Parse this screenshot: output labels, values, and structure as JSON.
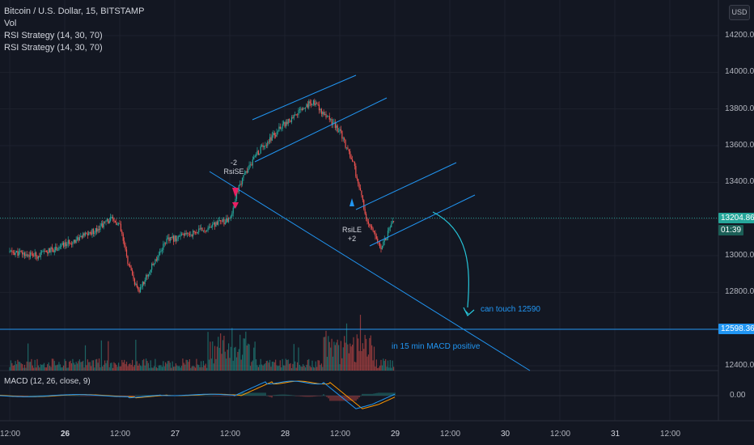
{
  "legend": {
    "symbol": "Bitcoin / U.S. Dollar, 15, BITSTAMP",
    "lines": [
      "Vol",
      "RSI Strategy (14, 30, 70)",
      "RSI Strategy (14, 30, 70)"
    ]
  },
  "currency_button": "USD",
  "macd_label": "MACD (12, 26, close, 9)",
  "price_badge": {
    "value": "13204.86",
    "timer": "01:39"
  },
  "line_badge": "12598.36",
  "annotations": {
    "short": {
      "count": "-2",
      "label": "RsiSE"
    },
    "long": {
      "label": "RsiLE",
      "count": "+2"
    },
    "note_target": "can touch 12590",
    "note_macd": "in 15 min MACD positive"
  },
  "colors": {
    "background": "#131722",
    "up": "#26a69a",
    "down": "#ef5350",
    "drawing": "#2196f3",
    "price_line": "#26a69a",
    "macd": "#2196f3",
    "signal": "#ff9800"
  },
  "chart_data": {
    "type": "candlestick",
    "title": "Bitcoin / U.S. Dollar, 15, BITSTAMP",
    "y_ticks": [
      "14200.00",
      "14000.00",
      "13800.00",
      "13600.00",
      "13400.00",
      "13200.00",
      "13000.00",
      "12800.00",
      "12600.00",
      "12400.00"
    ],
    "x_ticks": [
      "12:00",
      "26",
      "12:00",
      "27",
      "12:00",
      "28",
      "12:00",
      "29",
      "12:00",
      "30",
      "12:00",
      "31",
      "12:00"
    ],
    "macd_ticks": [
      "0.00"
    ],
    "ylim": [
      12375,
      14300
    ],
    "price_path": [
      {
        "x": "25 12:00",
        "y": 13020
      },
      {
        "x": "25 18:00",
        "y": 13000
      },
      {
        "x": "26 00:00",
        "y": 13060
      },
      {
        "x": "26 06:00",
        "y": 13130
      },
      {
        "x": "26 10:00",
        "y": 13200
      },
      {
        "x": "26 12:00",
        "y": 13160
      },
      {
        "x": "26 14:00",
        "y": 12940
      },
      {
        "x": "26 16:00",
        "y": 12800
      },
      {
        "x": "26 22:00",
        "y": 13080
      },
      {
        "x": "27 06:00",
        "y": 13140
      },
      {
        "x": "27 12:00",
        "y": 13200
      },
      {
        "x": "27 14:00",
        "y": 13380
      },
      {
        "x": "27 18:00",
        "y": 13560
      },
      {
        "x": "28 00:00",
        "y": 13720
      },
      {
        "x": "28 06:00",
        "y": 13840
      },
      {
        "x": "28 12:00",
        "y": 13680
      },
      {
        "x": "28 15:00",
        "y": 13500
      },
      {
        "x": "28 18:00",
        "y": 13180
      },
      {
        "x": "28 21:00",
        "y": 13050
      },
      {
        "x": "29 00:00",
        "y": 13200
      }
    ],
    "current_price": 13204.86,
    "horizontal_line": 12598.36
  }
}
